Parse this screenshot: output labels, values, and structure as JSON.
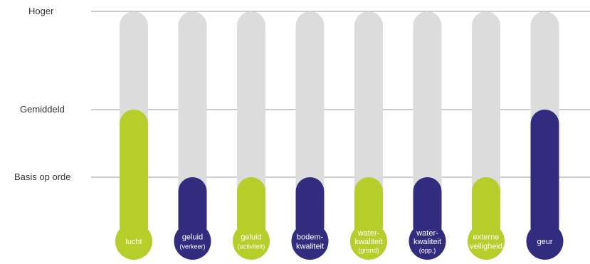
{
  "chart_data": {
    "type": "bar",
    "title": "",
    "xlabel": "",
    "ylabel": "",
    "levels": [
      {
        "key": "basis",
        "label": "Basis op orde",
        "value": 1
      },
      {
        "key": "gemiddeld",
        "label": "Gemiddeld",
        "value": 2
      },
      {
        "key": "hoger",
        "label": "Hoger",
        "value": 3
      }
    ],
    "ylim": [
      0,
      3
    ],
    "grid": true,
    "categories": [
      {
        "lines": [
          "lucht"
        ],
        "value": 2,
        "color": "green"
      },
      {
        "lines": [
          "geluid",
          "(verkeer)"
        ],
        "value": 1,
        "color": "blue"
      },
      {
        "lines": [
          "geluid",
          "(activiteit)"
        ],
        "value": 1,
        "color": "green"
      },
      {
        "lines": [
          "bodem-",
          "kwaliteit"
        ],
        "value": 1,
        "color": "blue"
      },
      {
        "lines": [
          "water-",
          "kwaliteit",
          "(grond)"
        ],
        "value": 1,
        "color": "green"
      },
      {
        "lines": [
          "water-",
          "kwaliteit",
          "(opp.)"
        ],
        "value": 1,
        "color": "blue"
      },
      {
        "lines": [
          "externe",
          "veiligheid"
        ],
        "value": 1,
        "color": "green"
      },
      {
        "lines": [
          "geur"
        ],
        "value": 2,
        "color": "blue"
      }
    ],
    "colors": {
      "green": "#B6CE2A",
      "blue": "#312C7E",
      "track": "#DCDCDC",
      "grid": "#9A9A9A",
      "text": "#333333"
    }
  }
}
